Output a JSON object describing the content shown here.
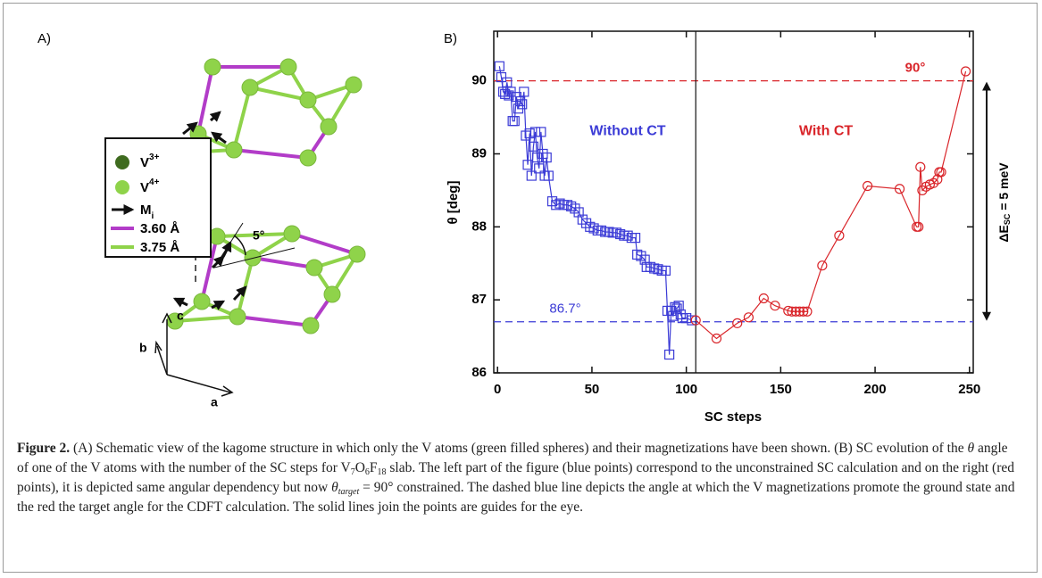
{
  "panel_a": {
    "label": "A)",
    "legend": [
      {
        "base": "V",
        "sup": "3+"
      },
      {
        "base": "V",
        "sup": "4+"
      },
      {
        "base": "M",
        "sub": "i"
      },
      {
        "text": "3.60 Å"
      },
      {
        "text": "3.75 Å"
      }
    ],
    "angle": "5°",
    "axes": [
      "c",
      "b",
      "a"
    ]
  },
  "chart_data": {
    "type": "line",
    "panel_label": "B)",
    "xlabel": "SC steps",
    "ylabel": "θ  [deg]",
    "xlim": [
      -2,
      252
    ],
    "ylim": [
      86,
      90.68
    ],
    "xticks": [
      0,
      50,
      100,
      150,
      200,
      250
    ],
    "yticks": [
      86,
      87,
      88,
      89,
      90
    ],
    "hlines": [
      {
        "value": 86.7,
        "label": "86.7°",
        "color": "#3b3bd6"
      },
      {
        "value": 90,
        "label": "90°",
        "color": "#d9252a"
      }
    ],
    "vlines": [
      105
    ],
    "energy_label": {
      "base": "ΔE",
      "sub": "SC",
      "rest": " = 5 meV"
    },
    "series": [
      {
        "name": "Without CT",
        "color": "#3b3bd6",
        "marker": "square",
        "x": [
          1,
          2,
          3,
          4,
          5,
          6,
          7,
          8,
          9,
          10,
          11,
          12,
          13,
          14,
          15,
          16,
          17,
          18,
          19,
          20,
          21,
          22,
          23,
          24,
          25,
          26,
          27,
          29,
          31,
          33,
          35,
          37,
          39,
          41,
          43,
          45,
          47,
          49,
          51,
          53,
          55,
          57,
          59,
          61,
          63,
          65,
          67,
          69,
          71,
          73,
          74,
          76,
          78,
          79,
          81,
          83,
          85,
          87,
          89,
          90,
          91,
          92,
          93,
          94,
          95,
          96,
          97,
          98,
          100,
          103
        ],
        "values": [
          90.2,
          90.05,
          89.85,
          89.82,
          89.98,
          89.8,
          89.85,
          89.45,
          89.45,
          89.78,
          89.62,
          89.72,
          89.68,
          89.85,
          89.25,
          88.85,
          89.28,
          88.7,
          89.1,
          89.3,
          88.95,
          88.8,
          89.3,
          89.0,
          88.7,
          88.95,
          88.7,
          88.35,
          88.3,
          88.32,
          88.3,
          88.3,
          88.28,
          88.25,
          88.2,
          88.1,
          88.05,
          88.0,
          87.98,
          87.95,
          87.95,
          87.93,
          87.93,
          87.92,
          87.92,
          87.9,
          87.88,
          87.88,
          87.85,
          87.85,
          87.62,
          87.6,
          87.55,
          87.45,
          87.45,
          87.43,
          87.42,
          87.4,
          87.4,
          86.85,
          86.25,
          86.85,
          86.78,
          86.9,
          86.88,
          86.92,
          86.8,
          86.75,
          86.75,
          86.72
        ]
      },
      {
        "name": "With CT",
        "color": "#d9252a",
        "marker": "circle",
        "x": [
          105,
          116,
          127,
          133,
          141,
          147,
          154,
          156,
          158,
          160,
          162,
          164,
          172,
          181,
          196,
          213,
          222,
          223,
          224,
          225,
          227,
          229,
          231,
          233,
          234,
          235,
          248
        ],
        "values": [
          86.72,
          86.47,
          86.68,
          86.76,
          87.02,
          86.92,
          86.85,
          86.84,
          86.84,
          86.84,
          86.84,
          86.84,
          87.47,
          87.88,
          88.56,
          88.52,
          88.0,
          88.0,
          88.82,
          88.5,
          88.55,
          88.58,
          88.6,
          88.65,
          88.75,
          88.75,
          90.13
        ]
      }
    ]
  },
  "caption": {
    "label": "Figure 2.",
    "parts": [
      " (A) Schematic view of the kagome structure in which only the V atoms  (green filled spheres) and their magnetizations have been shown. (B) SC evolution of the ",
      "θ",
      " angle of one of the V atoms with the number of the SC steps for V",
      "7",
      "O",
      "6",
      "F",
      "18",
      " slab. The left part of the figure (blue points) correspond to the unconstrained SC calculation and on the right  (red points), it is depicted same angular dependency but now ",
      "θ",
      "target",
      " = 90° constrained. The dashed blue line depicts the angle at which the V magnetizations promote the ground state and the red the target angle for the CDFT calculation. The solid lines join the points are guides for the eye."
    ]
  }
}
